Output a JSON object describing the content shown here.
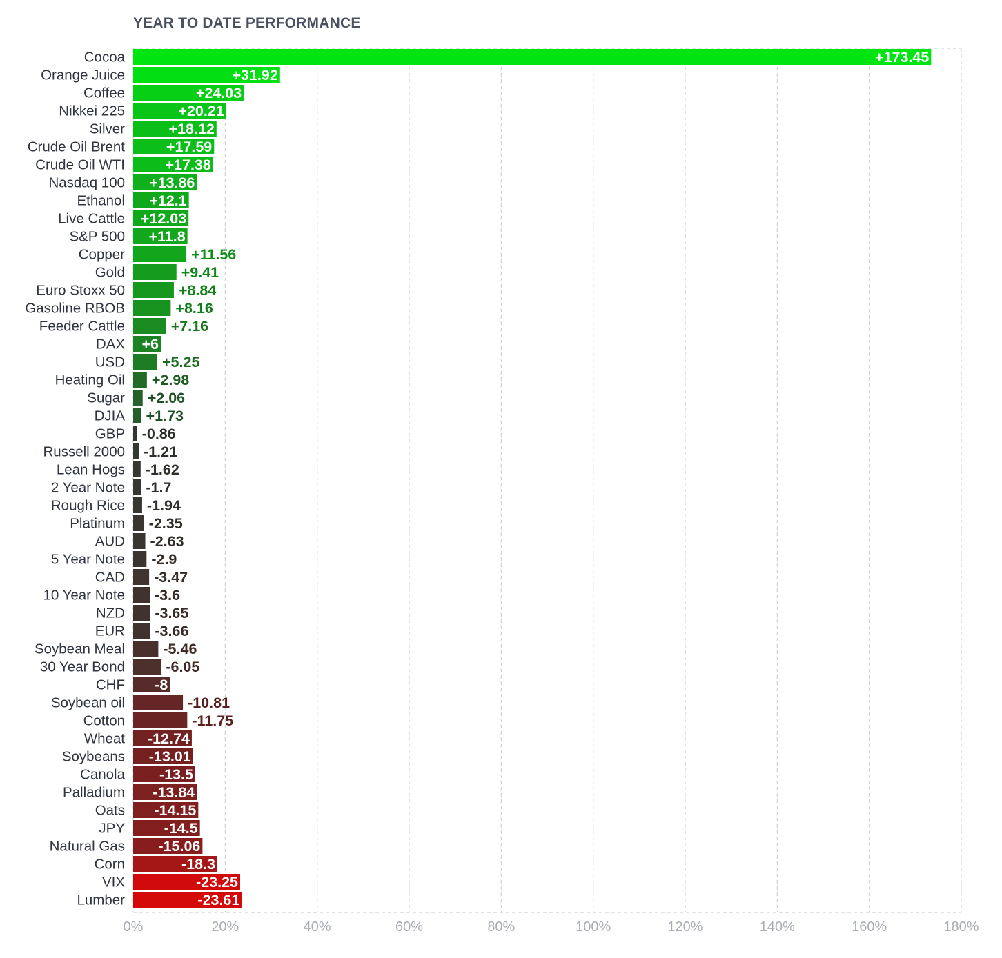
{
  "chart_data": {
    "type": "bar",
    "orientation": "horizontal",
    "title": "YEAR TO DATE PERFORMANCE",
    "xlabel": "",
    "ylabel": "",
    "xlim": [
      0,
      180
    ],
    "x_ticks": [
      "0%",
      "20%",
      "40%",
      "60%",
      "80%",
      "100%",
      "120%",
      "140%",
      "160%",
      "180%"
    ],
    "grid": true,
    "categories": [
      "Cocoa",
      "Orange Juice",
      "Coffee",
      "Nikkei 225",
      "Silver",
      "Crude Oil Brent",
      "Crude Oil WTI",
      "Nasdaq 100",
      "Ethanol",
      "Live Cattle",
      "S&P 500",
      "Copper",
      "Gold",
      "Euro Stoxx 50",
      "Gasoline RBOB",
      "Feeder Cattle",
      "DAX",
      "USD",
      "Heating Oil",
      "Sugar",
      "DJIA",
      "GBP",
      "Russell 2000",
      "Lean Hogs",
      "2 Year Note",
      "Rough Rice",
      "Platinum",
      "AUD",
      "5 Year Note",
      "CAD",
      "10 Year Note",
      "NZD",
      "EUR",
      "Soybean Meal",
      "30 Year Bond",
      "CHF",
      "Soybean oil",
      "Cotton",
      "Wheat",
      "Soybeans",
      "Canola",
      "Palladium",
      "Oats",
      "JPY",
      "Natural Gas",
      "Corn",
      "VIX",
      "Lumber"
    ],
    "values": [
      173.45,
      31.92,
      24.03,
      20.21,
      18.12,
      17.59,
      17.38,
      13.86,
      12.1,
      12.03,
      11.8,
      11.56,
      9.41,
      8.84,
      8.16,
      7.16,
      6,
      5.25,
      2.98,
      2.06,
      1.73,
      -0.86,
      -1.21,
      -1.62,
      -1.7,
      -1.94,
      -2.35,
      -2.63,
      -2.9,
      -3.47,
      -3.6,
      -3.65,
      -3.66,
      -5.46,
      -6.05,
      -8,
      -10.81,
      -11.75,
      -12.74,
      -13.01,
      -13.5,
      -13.84,
      -14.15,
      -14.5,
      -15.06,
      -18.3,
      -23.25,
      -23.61
    ],
    "value_labels": [
      "+173.45",
      "+31.92",
      "+24.03",
      "+20.21",
      "+18.12",
      "+17.59",
      "+17.38",
      "+13.86",
      "+12.1",
      "+12.03",
      "+11.8",
      "+11.56",
      "+9.41",
      "+8.84",
      "+8.16",
      "+7.16",
      "+6",
      "+5.25",
      "+2.98",
      "+2.06",
      "+1.73",
      "-0.86",
      "-1.21",
      "-1.62",
      "-1.7",
      "-1.94",
      "-2.35",
      "-2.63",
      "-2.9",
      "-3.47",
      "-3.6",
      "-3.65",
      "-3.66",
      "-5.46",
      "-6.05",
      "-8",
      "-10.81",
      "-11.75",
      "-12.74",
      "-13.01",
      "-13.5",
      "-13.84",
      "-14.15",
      "-14.5",
      "-15.06",
      "-18.3",
      "-23.25",
      "-23.61"
    ],
    "bar_length": "absolute value",
    "colors": {
      "positive_max": "#00e512",
      "positive_mid": "#1f7a24",
      "neutral": "#2d3a32",
      "negative_mid": "#6b2424",
      "negative_max": "#d40a0a",
      "grid": "#cfd2d7",
      "tick_text": "#a9adb6",
      "category_text": "#2f3440",
      "title_text": "#4a5060",
      "inside_label_text": "#ffffff"
    }
  }
}
